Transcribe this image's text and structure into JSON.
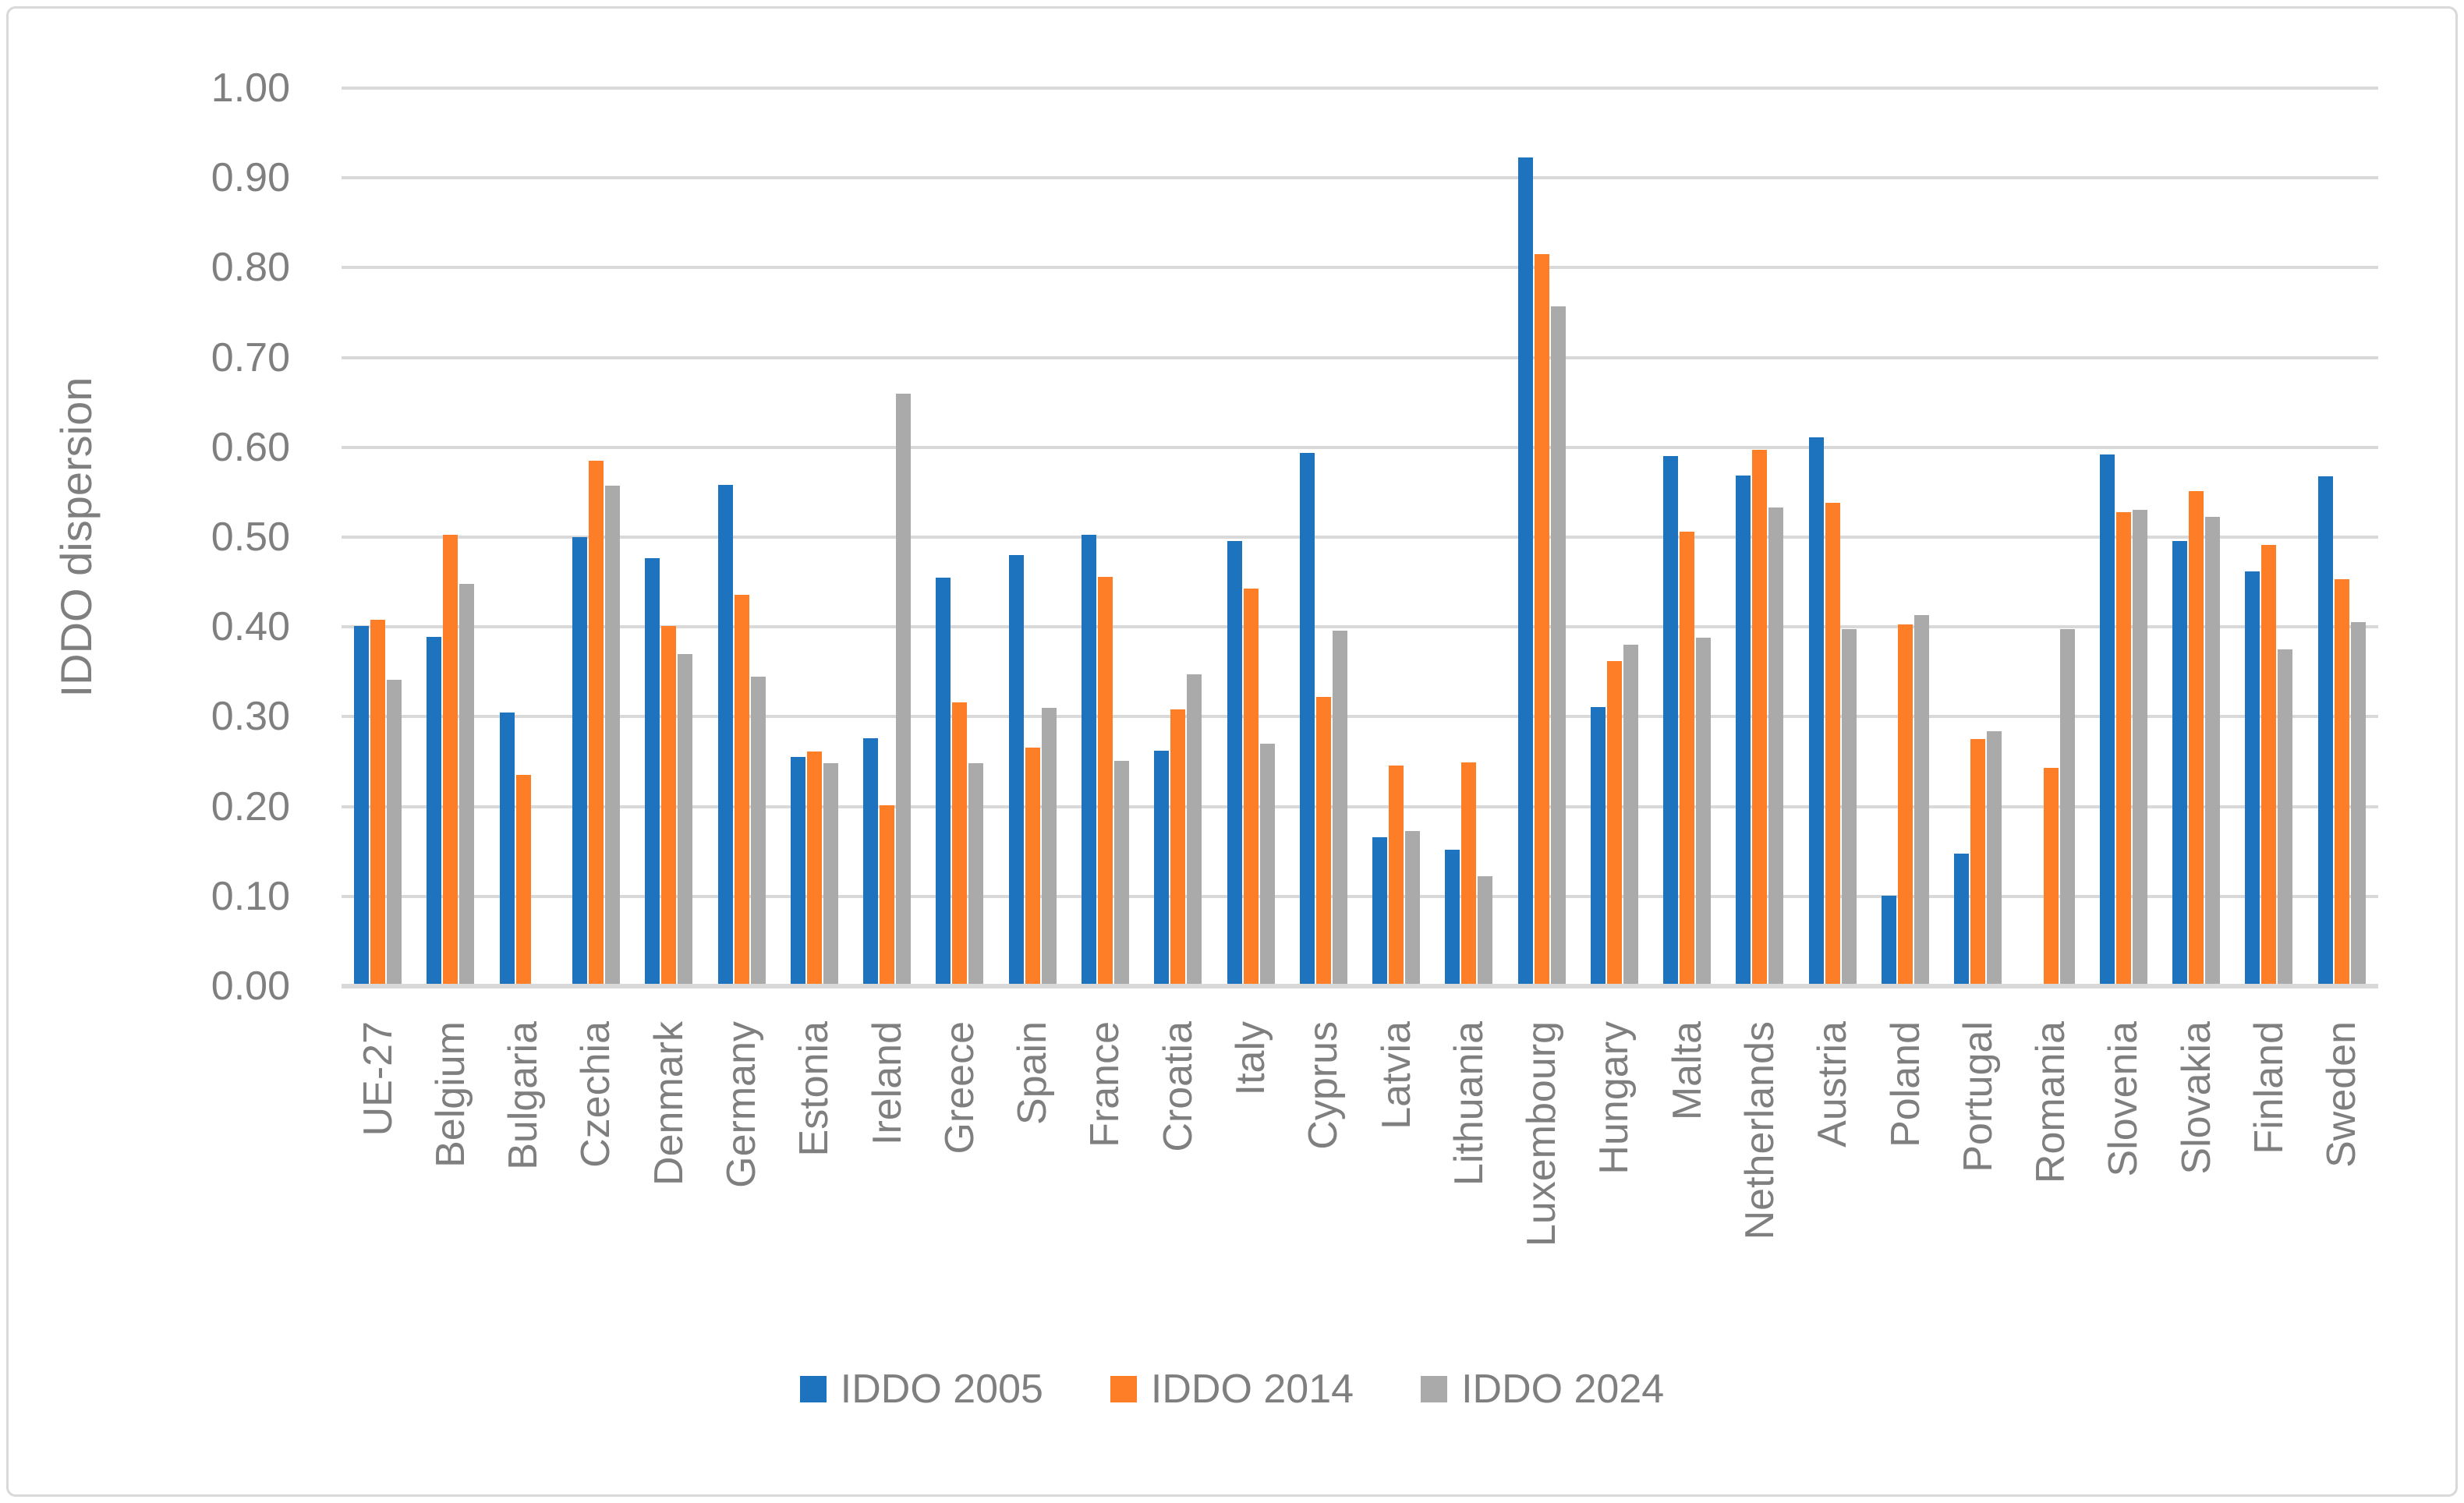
{
  "chart_data": {
    "type": "bar",
    "title": "",
    "ylabel": "IDDO dispersion",
    "xlabel": "",
    "ylim": [
      0.0,
      1.0
    ],
    "ytick_step": 0.1,
    "ytick_decimals": 2,
    "grid": "horizontal",
    "legend_position": "bottom-center",
    "categories": [
      "UE-27",
      "Belgium",
      "Bulgaria",
      "Czechia",
      "Denmark",
      "Germany",
      "Estonia",
      "Ireland",
      "Greece",
      "Spain",
      "France",
      "Croatia",
      "Italy",
      "Cyprus",
      "Latvia",
      "Lithuania",
      "Luxembourg",
      "Hungary",
      "Malta",
      "Netherlands",
      "Austria",
      "Poland",
      "Portugal",
      "Romania",
      "Slovenia",
      "Slovakia",
      "Finland",
      "Sweden"
    ],
    "series": [
      {
        "name": "IDDO 2005",
        "color": "#1E73BE",
        "values": [
          0.401,
          0.389,
          0.305,
          0.5,
          0.477,
          0.558,
          0.255,
          0.276,
          0.455,
          0.48,
          0.503,
          0.262,
          0.496,
          0.594,
          0.166,
          0.152,
          0.923,
          0.311,
          0.59,
          0.569,
          0.611,
          0.101,
          0.148,
          null,
          0.592,
          0.496,
          0.462,
          0.568
        ]
      },
      {
        "name": "IDDO 2014",
        "color": "#FD7E27",
        "values": [
          0.408,
          0.503,
          0.235,
          0.585,
          0.401,
          0.436,
          0.261,
          0.201,
          0.316,
          0.266,
          0.456,
          0.308,
          0.443,
          0.322,
          0.246,
          0.249,
          0.815,
          0.362,
          0.506,
          0.597,
          0.538,
          0.403,
          0.275,
          0.243,
          0.528,
          0.551,
          0.491,
          0.453
        ]
      },
      {
        "name": "IDDO 2024",
        "color": "#AAAAAA",
        "values": [
          0.341,
          0.448,
          null,
          0.557,
          0.37,
          0.345,
          0.248,
          0.66,
          0.248,
          0.31,
          0.251,
          0.347,
          0.27,
          0.396,
          0.173,
          0.122,
          0.757,
          0.38,
          0.388,
          0.533,
          0.398,
          0.413,
          0.284,
          0.398,
          0.53,
          0.523,
          0.375,
          0.405
        ]
      }
    ]
  },
  "colors": {
    "gridline": "#D9D9D9",
    "axis_line": "#D9D9D9",
    "text": "#7F7F7F",
    "frame_border": "#D9D9D9",
    "background": "#FFFFFF"
  }
}
